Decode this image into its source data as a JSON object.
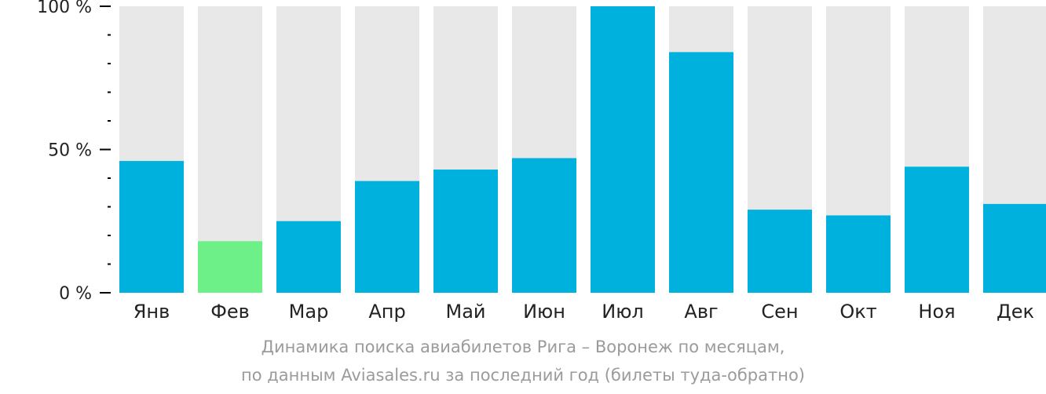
{
  "chart_data": {
    "type": "bar",
    "categories": [
      "Янв",
      "Фев",
      "Мар",
      "Апр",
      "Май",
      "Июн",
      "Июл",
      "Авг",
      "Сен",
      "Окт",
      "Ноя",
      "Дек"
    ],
    "values": [
      46,
      18,
      25,
      39,
      43,
      47,
      100,
      84,
      29,
      27,
      44,
      31
    ],
    "ylim": [
      0,
      100
    ],
    "y_ticks": [
      {
        "value": 0,
        "label": "0 %"
      },
      {
        "value": 50,
        "label": "50 %"
      },
      {
        "value": 100,
        "label": "100 %"
      }
    ],
    "y_minor_step": 10,
    "highlight_index": 1,
    "colors": {
      "bar": "#00b0dd",
      "highlight": "#6cf087",
      "track": "#e8e8e8",
      "axis": "#000000",
      "tick_label": "#222222",
      "caption": "#9b9b9b"
    },
    "grid": false,
    "legend": "none",
    "caption_lines": [
      "Динамика поиска авиабилетов Рига – Воронеж по месяцам,",
      "по данным Aviasales.ru за последний год (билеты туда-обратно)"
    ]
  }
}
